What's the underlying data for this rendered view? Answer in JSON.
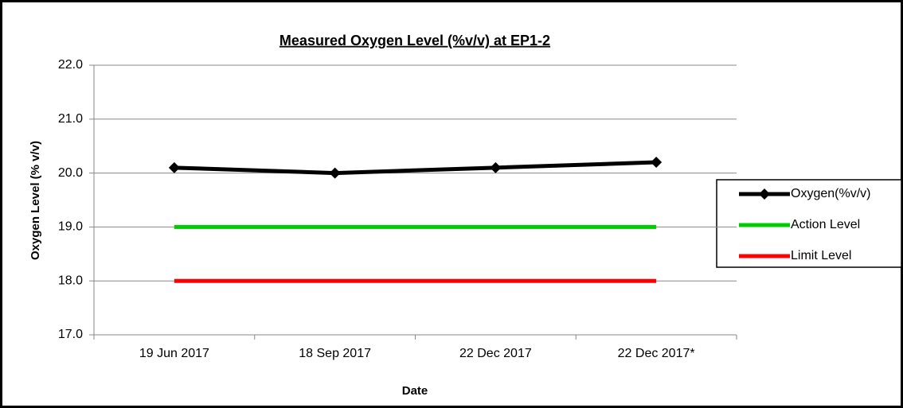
{
  "chart_data": {
    "type": "line",
    "title": "Measured Oxygen Level (%v/v) at EP1-2",
    "x_label": "Date",
    "y_label": "Oxygen Level (% v/v)",
    "categories": [
      "19 Jun 2017",
      "18 Sep 2017",
      "22 Dec 2017",
      "22 Dec 2017*"
    ],
    "series": [
      {
        "name": "Oxygen(%v/v)",
        "color": "#000000",
        "values": [
          20.1,
          20.0,
          20.1,
          20.2
        ],
        "marker": "diamond"
      },
      {
        "name": "Action Level",
        "color": "#00cc00",
        "values": [
          19,
          19,
          19,
          19
        ]
      },
      {
        "name": "Limit Level",
        "color": "#ff0000",
        "values": [
          18,
          18,
          18,
          18
        ]
      }
    ],
    "ylim": [
      17,
      22
    ],
    "yticks": [
      {
        "value": 17,
        "label": "17.0"
      },
      {
        "value": 18,
        "label": "18.0"
      },
      {
        "value": 19,
        "label": "19.0"
      },
      {
        "value": 20,
        "label": "20.0"
      },
      {
        "value": 21,
        "label": "21.0"
      },
      {
        "value": 22,
        "label": "22.0"
      }
    ],
    "grid": true,
    "legend": "right"
  }
}
